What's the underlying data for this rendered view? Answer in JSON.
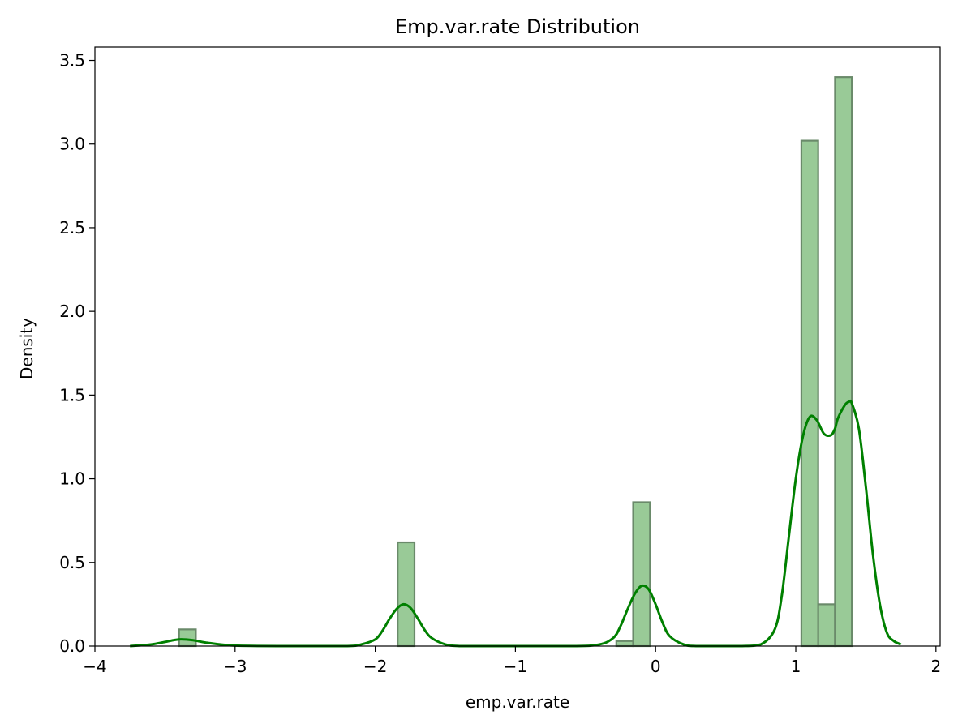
{
  "chart_data": {
    "type": "histogram",
    "title": "Emp.var.rate Distribution",
    "xlabel": "emp.var.rate",
    "ylabel": "Density",
    "xlim": [
      -4.0,
      2.03
    ],
    "ylim": [
      0,
      3.58
    ],
    "xticks": [
      -4,
      -3,
      -2,
      -1,
      0,
      1,
      2
    ],
    "xtick_labels": [
      "−4",
      "−3",
      "−2",
      "−1",
      "0",
      "1",
      "2"
    ],
    "yticks": [
      0.0,
      0.5,
      1.0,
      1.5,
      2.0,
      2.5,
      3.0,
      3.5
    ],
    "ytick_labels": [
      "0.0",
      "0.5",
      "1.0",
      "1.5",
      "2.0",
      "2.5",
      "3.0",
      "3.5"
    ],
    "grid": false,
    "bins": [
      {
        "x0": -3.4,
        "x1": -3.28,
        "density": 0.1
      },
      {
        "x0": -1.84,
        "x1": -1.72,
        "density": 0.62
      },
      {
        "x0": -0.28,
        "x1": -0.16,
        "density": 0.03
      },
      {
        "x0": -0.16,
        "x1": -0.04,
        "density": 0.86
      },
      {
        "x0": 1.04,
        "x1": 1.16,
        "density": 3.02
      },
      {
        "x0": 1.16,
        "x1": 1.28,
        "density": 0.25
      },
      {
        "x0": 1.28,
        "x1": 1.4,
        "density": 3.4
      }
    ],
    "kde": {
      "x": [
        -3.75,
        -3.6,
        -3.5,
        -3.4,
        -3.3,
        -3.2,
        -3.0,
        -2.6,
        -2.2,
        -2.1,
        -2.0,
        -1.95,
        -1.9,
        -1.85,
        -1.8,
        -1.75,
        -1.7,
        -1.65,
        -1.6,
        -1.5,
        -1.4,
        -1.2,
        -0.6,
        -0.4,
        -0.3,
        -0.25,
        -0.2,
        -0.15,
        -0.1,
        -0.05,
        0.0,
        0.05,
        0.1,
        0.2,
        0.3,
        0.6,
        0.75,
        0.85,
        0.9,
        0.95,
        1.0,
        1.05,
        1.1,
        1.15,
        1.2,
        1.25,
        1.28,
        1.3,
        1.35,
        1.38,
        1.4,
        1.45,
        1.5,
        1.55,
        1.6,
        1.65,
        1.7,
        1.75
      ],
      "y": [
        0.0,
        0.01,
        0.025,
        0.04,
        0.035,
        0.02,
        0.003,
        0.0,
        0.0,
        0.01,
        0.04,
        0.09,
        0.16,
        0.22,
        0.25,
        0.23,
        0.17,
        0.1,
        0.05,
        0.01,
        0.0,
        0.0,
        0.0,
        0.01,
        0.05,
        0.12,
        0.22,
        0.31,
        0.36,
        0.34,
        0.25,
        0.14,
        0.06,
        0.01,
        0.0,
        0.0,
        0.01,
        0.1,
        0.3,
        0.65,
        1.0,
        1.25,
        1.37,
        1.35,
        1.27,
        1.26,
        1.3,
        1.36,
        1.44,
        1.46,
        1.45,
        1.3,
        0.95,
        0.55,
        0.25,
        0.08,
        0.03,
        0.01
      ]
    },
    "colors": {
      "bar_fill": "#99ca97",
      "bar_edge": "#6a8a6a",
      "kde_line": "#008000"
    }
  }
}
